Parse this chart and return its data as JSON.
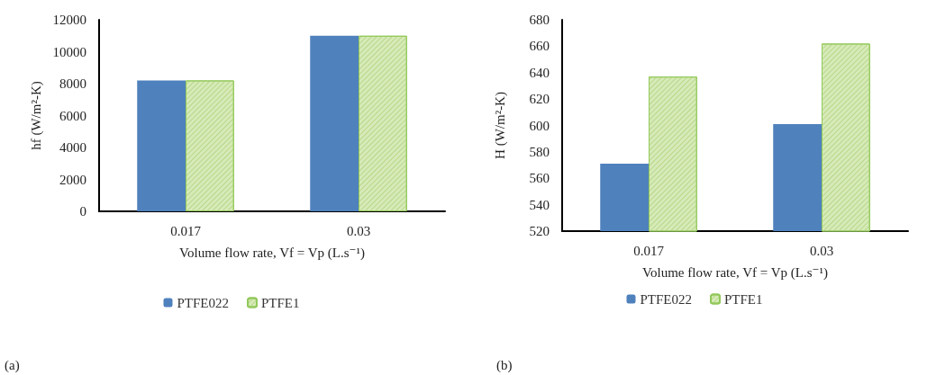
{
  "chart_data": [
    {
      "type": "bar",
      "categories": [
        "0.017",
        "0.03"
      ],
      "xlabel": "Volume flow rate, Vf = Vp (L.s⁻¹)",
      "ylabel": "hf (W/m²-K)",
      "ylim": [
        0,
        12000
      ],
      "yticks": [
        0,
        2000,
        4000,
        6000,
        8000,
        10000,
        12000
      ],
      "grid": false,
      "legend": "bottom",
      "annotations": [
        "(a)"
      ],
      "series": [
        {
          "name": "PTFE022",
          "color": "#4f81bd",
          "values": [
            8200,
            11000
          ]
        },
        {
          "name": "PTFE1",
          "color": "#d7eab8",
          "values": [
            8200,
            11000
          ]
        }
      ]
    },
    {
      "type": "bar",
      "categories": [
        "0.017",
        "0.03"
      ],
      "xlabel": "Volume flow rate, Vf = Vp (L.s⁻¹)",
      "ylabel": "H (W/m²-K)",
      "ylim": [
        520,
        680
      ],
      "yticks": [
        520,
        540,
        560,
        580,
        600,
        620,
        640,
        660,
        680
      ],
      "grid": false,
      "legend": "bottom",
      "annotations": [
        "(b)"
      ],
      "series": [
        {
          "name": "PTFE022",
          "color": "#4f81bd",
          "values": [
            571,
            601
          ]
        },
        {
          "name": "PTFE1",
          "color": "#d7eab8",
          "values": [
            637,
            662
          ]
        }
      ]
    }
  ]
}
